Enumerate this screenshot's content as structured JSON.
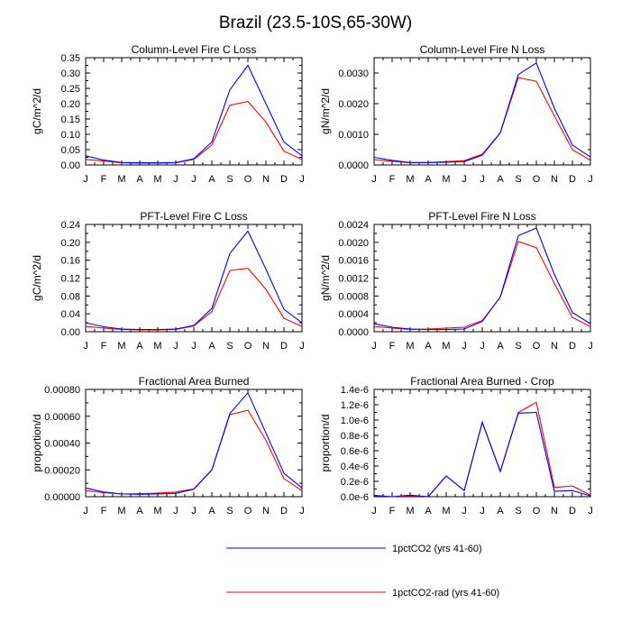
{
  "title": "Brazil (23.5-10S,65-30W)",
  "legend": [
    {
      "label": "1pctCO2 (yrs 41-60)",
      "color": "#0000ff"
    },
    {
      "label": "1pctCO2-rad (yrs 41-60)",
      "color": "#ff0000"
    }
  ],
  "chart_data": [
    {
      "type": "line",
      "title": "Column-Level Fire C Loss",
      "ylabel": "gC/m^2/d",
      "categories": [
        "J",
        "F",
        "M",
        "A",
        "M",
        "J",
        "J",
        "A",
        "S",
        "O",
        "N",
        "D",
        "J"
      ],
      "ylim": [
        0,
        0.35
      ],
      "yticks": [
        0,
        0.05,
        0.1,
        0.15,
        0.2,
        0.25,
        0.3,
        0.35
      ],
      "yticklabels": [
        "0.00",
        "0.05",
        "0.10",
        "0.15",
        "0.20",
        "0.25",
        "0.30",
        "0.35"
      ],
      "series": [
        {
          "name": "1pctCO2 (yrs 41-60)",
          "color": "#0000ff",
          "values": [
            0.03,
            0.016,
            0.008,
            0.007,
            0.007,
            0.008,
            0.02,
            0.075,
            0.245,
            0.325,
            0.2,
            0.075,
            0.03
          ]
        },
        {
          "name": "1pctCO2-rad (yrs 41-60)",
          "color": "#ff0000",
          "values": [
            0.018,
            0.013,
            0.007,
            0.006,
            0.006,
            0.007,
            0.018,
            0.065,
            0.195,
            0.207,
            0.14,
            0.045,
            0.018
          ]
        }
      ]
    },
    {
      "type": "line",
      "title": "Column-Level Fire N Loss",
      "ylabel": "gN/m^2/d",
      "categories": [
        "J",
        "F",
        "M",
        "A",
        "M",
        "J",
        "J",
        "A",
        "S",
        "O",
        "N",
        "D",
        "J"
      ],
      "ylim": [
        0,
        0.0035
      ],
      "yticks": [
        0,
        0.001,
        0.002,
        0.003
      ],
      "yticklabels": [
        "0.0000",
        "0.0010",
        "0.0020",
        "0.0030"
      ],
      "series": [
        {
          "name": "1pctCO2 (yrs 41-60)",
          "color": "#0000ff",
          "values": [
            0.00025,
            0.00015,
            8e-05,
            8e-05,
            9e-05,
            0.00011,
            0.00032,
            0.00105,
            0.00295,
            0.00333,
            0.00185,
            0.00065,
            0.00026
          ]
        },
        {
          "name": "1pctCO2-rad (yrs 41-60)",
          "color": "#ff0000",
          "values": [
            0.00017,
            0.00012,
            7e-05,
            8e-05,
            0.00011,
            0.00014,
            0.00035,
            0.00105,
            0.00285,
            0.00273,
            0.0016,
            0.0005,
            0.00015
          ]
        }
      ]
    },
    {
      "type": "line",
      "title": "PFT-Level Fire C Loss",
      "ylabel": "gC/m^2/d",
      "categories": [
        "J",
        "F",
        "M",
        "A",
        "M",
        "J",
        "J",
        "A",
        "S",
        "O",
        "N",
        "D",
        "J"
      ],
      "ylim": [
        0,
        0.24
      ],
      "yticks": [
        0,
        0.04,
        0.08,
        0.12,
        0.16,
        0.2,
        0.24
      ],
      "yticklabels": [
        "0.00",
        "0.04",
        "0.08",
        "0.12",
        "0.16",
        "0.20",
        "0.24"
      ],
      "series": [
        {
          "name": "1pctCO2 (yrs 41-60)",
          "color": "#0000ff",
          "values": [
            0.02,
            0.011,
            0.006,
            0.005,
            0.005,
            0.006,
            0.014,
            0.052,
            0.175,
            0.225,
            0.14,
            0.05,
            0.02
          ]
        },
        {
          "name": "1pctCO2-rad (yrs 41-60)",
          "color": "#ff0000",
          "values": [
            0.012,
            0.008,
            0.005,
            0.004,
            0.004,
            0.005,
            0.013,
            0.045,
            0.137,
            0.142,
            0.095,
            0.03,
            0.012
          ]
        }
      ]
    },
    {
      "type": "line",
      "title": "PFT-Level Fire N Loss",
      "ylabel": "gN/m^2/d",
      "categories": [
        "J",
        "F",
        "M",
        "A",
        "M",
        "J",
        "J",
        "A",
        "S",
        "O",
        "N",
        "D",
        "J"
      ],
      "ylim": [
        0,
        0.0024
      ],
      "yticks": [
        0,
        0.0004,
        0.0008,
        0.0012,
        0.0016,
        0.002,
        0.0024
      ],
      "yticklabels": [
        "0.0000",
        "0.0004",
        "0.0008",
        "0.0012",
        "0.0016",
        "0.0020",
        "0.0024"
      ],
      "series": [
        {
          "name": "1pctCO2 (yrs 41-60)",
          "color": "#0000ff",
          "values": [
            0.00018,
            0.0001,
            6e-05,
            5e-05,
            5e-05,
            6e-05,
            0.00023,
            0.00078,
            0.00215,
            0.00232,
            0.00128,
            0.00043,
            0.00018
          ]
        },
        {
          "name": "1pctCO2-rad (yrs 41-60)",
          "color": "#ff0000",
          "values": [
            0.00012,
            8e-05,
            5e-05,
            6e-05,
            8e-05,
            0.0001,
            0.00025,
            0.00077,
            0.00202,
            0.00188,
            0.00108,
            0.00032,
            0.00011
          ]
        }
      ]
    },
    {
      "type": "line",
      "title": "Fractional Area Burned",
      "ylabel": "proportion/d",
      "categories": [
        "J",
        "F",
        "M",
        "A",
        "M",
        "J",
        "J",
        "A",
        "S",
        "O",
        "N",
        "D",
        "J"
      ],
      "ylim": [
        0,
        0.0008
      ],
      "yticks": [
        0,
        0.0002,
        0.0004,
        0.0006,
        0.0008
      ],
      "yticklabels": [
        "0.00000",
        "0.00020",
        "0.00040",
        "0.00060",
        "0.00080"
      ],
      "series": [
        {
          "name": "1pctCO2 (yrs 41-60)",
          "color": "#0000ff",
          "values": [
            6.5e-05,
            3.5e-05,
            2e-05,
            1.8e-05,
            2e-05,
            2.5e-05,
            5.5e-05,
            0.0002,
            0.00062,
            0.000775,
            0.000475,
            0.000175,
            6.5e-05
          ]
        },
        {
          "name": "1pctCO2-rad (yrs 41-60)",
          "color": "#ff0000",
          "values": [
            4.5e-05,
            3e-05,
            2e-05,
            2.2e-05,
            2.6e-05,
            3.5e-05,
            5.8e-05,
            0.0002,
            0.000612,
            0.000645,
            0.00042,
            0.000135,
            4.5e-05
          ]
        }
      ]
    },
    {
      "type": "line",
      "title": "Fractional Area Burned - Crop",
      "ylabel": "proportion/d",
      "categories": [
        "J",
        "F",
        "M",
        "A",
        "M",
        "J",
        "J",
        "A",
        "S",
        "O",
        "N",
        "D",
        "J"
      ],
      "ylim": [
        0,
        1.4e-06
      ],
      "yticks": [
        0,
        2e-07,
        4e-07,
        6e-07,
        8e-07,
        1e-06,
        1.2e-06,
        1.4e-06
      ],
      "yticklabels": [
        "0.0e-6",
        "0.2e-6",
        "0.4e-6",
        "0.6e-6",
        "0.8e-6",
        "1.0e-6",
        "1.2e-6",
        "1.4e-6"
      ],
      "series": [
        {
          "name": "1pctCO2 (yrs 41-60)",
          "color": "#0000ff",
          "values": [
            1e-08,
            0,
            2e-08,
            0,
            2.7e-07,
            8e-08,
            9.7e-07,
            3.3e-07,
            1.09e-06,
            1.1e-06,
            7e-08,
            8e-08,
            1e-08
          ]
        },
        {
          "name": "1pctCO2-rad (yrs 41-60)",
          "color": "#ff0000",
          "values": [
            2e-08,
            0,
            1e-08,
            0,
            2.7e-07,
            8e-08,
            9.7e-07,
            3.3e-07,
            1.1e-06,
            1.23e-06,
            1.2e-07,
            1.4e-07,
            2e-08
          ]
        }
      ]
    }
  ]
}
